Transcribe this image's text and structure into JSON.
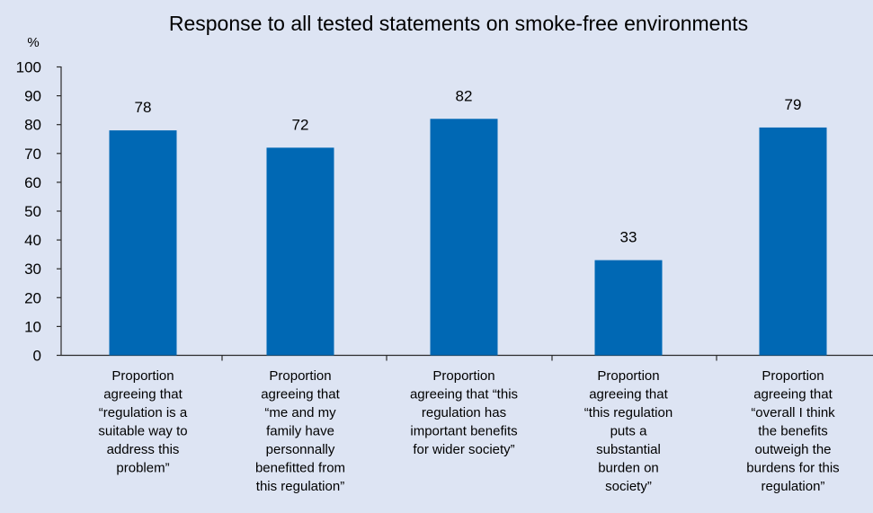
{
  "chart_data": {
    "type": "bar",
    "title": "Response to all tested statements on smoke-free environments",
    "ylabel": "%",
    "ylim": [
      0,
      100
    ],
    "yticks": [
      0,
      10,
      20,
      30,
      40,
      50,
      60,
      70,
      80,
      90,
      100
    ],
    "categories": [
      [
        "Proportion",
        "agreeing that",
        "“regulation is a",
        "suitable way to",
        "address this",
        "problem”"
      ],
      [
        "Proportion",
        "agreeing that",
        "“me and my",
        "family have",
        "personnally",
        "benefitted from",
        "this regulation”"
      ],
      [
        "Proportion",
        "agreeing that “this",
        "regulation has",
        "important benefits",
        "for wider society”"
      ],
      [
        "Proportion",
        "agreeing that",
        "“this regulation",
        "puts a",
        "substantial",
        "burden on",
        "society”"
      ],
      [
        "Proportion",
        "agreeing that",
        "“overall I think",
        "the benefits",
        "outweigh the",
        "burdens for this",
        "regulation”"
      ]
    ],
    "values": [
      78,
      72,
      82,
      33,
      79
    ],
    "bar_color": "#0068b4",
    "background_color": "#dde4f3",
    "grid": false,
    "legend": false
  }
}
